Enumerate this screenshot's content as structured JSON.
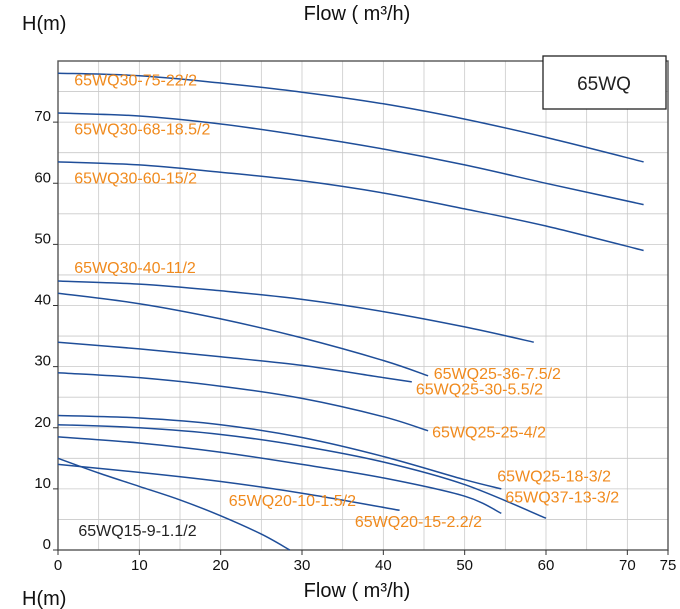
{
  "chart_data": {
    "type": "line",
    "title": "65WQ",
    "top_xlabel": "Flow ( m³/h)",
    "top_ylabel": "H(m)",
    "xlabel": "Flow ( m³/h)",
    "ylabel": "H(m)",
    "xlim": [
      0,
      75
    ],
    "ylim": [
      0,
      80
    ],
    "x_ticks": [
      0,
      10,
      20,
      30,
      40,
      50,
      60,
      70,
      75
    ],
    "y_ticks": [
      0,
      10,
      20,
      30,
      40,
      50,
      60,
      70
    ],
    "grid": true,
    "line_color": "#1f4e99",
    "label_color": "#f08a1d",
    "series": [
      {
        "name": "65WQ30-75-22/2",
        "x": [
          0,
          10,
          20,
          30,
          40,
          50,
          60,
          72
        ],
        "y": [
          78,
          77.6,
          76.4,
          74.9,
          73,
          70.5,
          67.5,
          63.5
        ]
      },
      {
        "name": "65WQ30-68-18.5/2",
        "x": [
          0,
          10,
          20,
          30,
          40,
          50,
          60,
          72
        ],
        "y": [
          71.5,
          71,
          69.7,
          67.8,
          65.6,
          63,
          60,
          56.5
        ]
      },
      {
        "name": "65WQ30-60-15/2",
        "x": [
          0,
          10,
          20,
          30,
          40,
          50,
          60,
          72
        ],
        "y": [
          63.5,
          63,
          61.8,
          60.4,
          58.4,
          55.8,
          53,
          49
        ]
      },
      {
        "name": "65WQ30-40-11/2",
        "x": [
          0,
          10,
          20,
          30,
          40,
          50,
          58.5
        ],
        "y": [
          44,
          43.5,
          42.4,
          41,
          39,
          36.5,
          34
        ]
      },
      {
        "name": "65WQ25-36-7.5/2",
        "x": [
          0,
          10,
          20,
          30,
          40,
          45.5
        ],
        "y": [
          42,
          40.3,
          37.8,
          34.7,
          31,
          28.5
        ]
      },
      {
        "name": "65WQ25-30-5.5/2",
        "x": [
          0,
          10,
          20,
          30,
          40,
          43.5
        ],
        "y": [
          34,
          32.9,
          31.6,
          30.2,
          28.2,
          27.5
        ]
      },
      {
        "name": "65WQ25-25-4/2",
        "x": [
          0,
          10,
          20,
          30,
          40,
          45.5
        ],
        "y": [
          29,
          28.2,
          26.8,
          24.8,
          21.8,
          19.5
        ]
      },
      {
        "name": "65WQ25-18-3/2",
        "x": [
          0,
          10,
          20,
          30,
          40,
          50,
          54.5
        ],
        "y": [
          22,
          21.6,
          20.5,
          18.4,
          15.3,
          11.5,
          10
        ]
      },
      {
        "name": "65WQ37-13-3/2",
        "x": [
          0,
          10,
          20,
          30,
          40,
          50,
          60
        ],
        "y": [
          20.5,
          20,
          18.9,
          17,
          14.4,
          10.7,
          5.2
        ]
      },
      {
        "name": "65WQ20-15-2.2/2",
        "x": [
          0,
          10,
          20,
          30,
          40,
          50,
          54.5
        ],
        "y": [
          18.5,
          17.5,
          16,
          14,
          11.8,
          8.8,
          6
        ]
      },
      {
        "name": "65WQ20-10-1.5/2",
        "x": [
          0,
          10,
          20,
          30,
          42
        ],
        "y": [
          14,
          12.7,
          11.2,
          9.3,
          6.5
        ]
      },
      {
        "name": "65WQ15-9-1.1/2",
        "x": [
          0,
          5,
          10,
          15,
          20,
          25,
          28.5
        ],
        "y": [
          15,
          12.6,
          10.4,
          8.2,
          5.6,
          2.6,
          0
        ]
      }
    ],
    "labels": [
      {
        "text": "65WQ30-75-22/2",
        "x": 2,
        "y": 76,
        "color": "#f08a1d"
      },
      {
        "text": "65WQ30-68-18.5/2",
        "x": 2,
        "y": 68,
        "color": "#f08a1d"
      },
      {
        "text": "65WQ30-60-15/2",
        "x": 2,
        "y": 60,
        "color": "#f08a1d"
      },
      {
        "text": "65WQ30-40-11/2",
        "x": 2,
        "y": 45.3,
        "color": "#f08a1d"
      },
      {
        "text": "65WQ25-36-7.5/2",
        "x": 46.2,
        "y": 28,
        "color": "#f08a1d"
      },
      {
        "text": "65WQ25-30-5.5/2",
        "x": 44,
        "y": 25.4,
        "color": "#f08a1d"
      },
      {
        "text": "65WQ25-25-4/2",
        "x": 46,
        "y": 18.4,
        "color": "#f08a1d"
      },
      {
        "text": "65WQ25-18-3/2",
        "x": 54,
        "y": 11.2,
        "color": "#f08a1d"
      },
      {
        "text": "65WQ37-13-3/2",
        "x": 55,
        "y": 7.8,
        "color": "#f08a1d"
      },
      {
        "text": "65WQ20-10-1.5/2",
        "x": 21,
        "y": 7.2,
        "color": "#f08a1d"
      },
      {
        "text": "65WQ20-15-2.2/2",
        "x": 36.5,
        "y": 3.8,
        "color": "#f08a1d"
      },
      {
        "text": "65WQ15-9-1.1/2",
        "x": 2.5,
        "y": 2.3,
        "color": "#222222"
      }
    ]
  }
}
